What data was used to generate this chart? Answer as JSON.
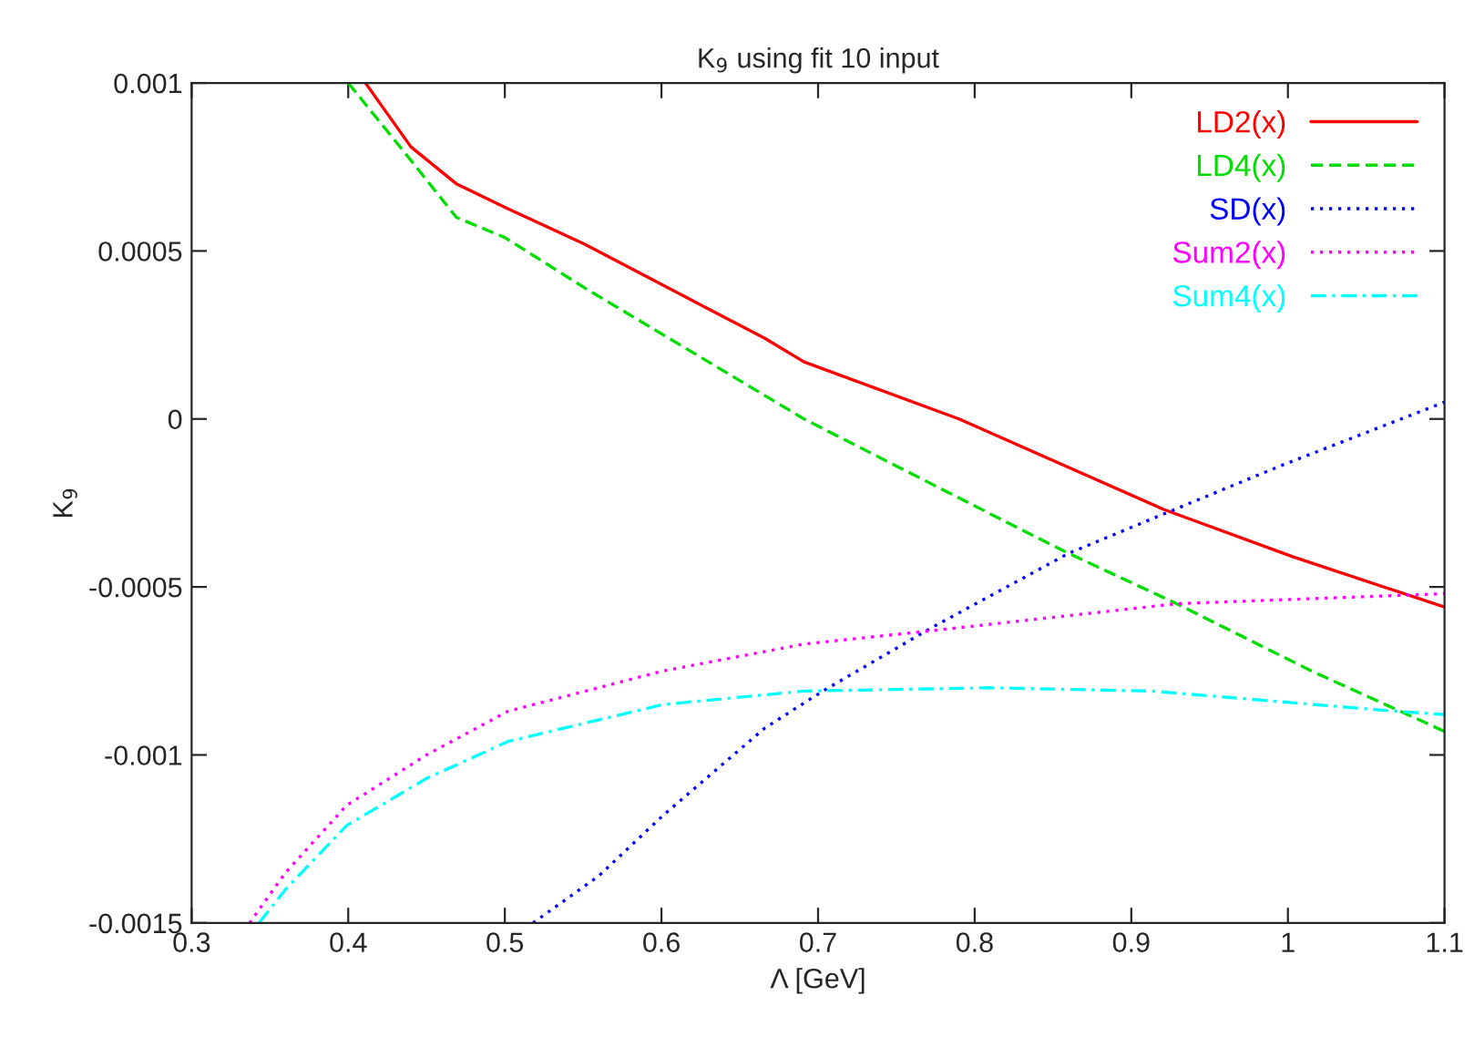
{
  "chart_data": {
    "type": "line",
    "title": "K$_{9}$ using fit 10 input",
    "xlabel": "Λ [GeV]",
    "ylabel": "K$_{9}$",
    "xlim": [
      0.3,
      1.1
    ],
    "xticks": [
      0.3,
      0.4,
      0.5,
      0.6,
      0.7,
      0.8,
      0.9,
      1,
      1.1
    ],
    "ylim": [
      -0.0015,
      0.001
    ],
    "yticks": [
      -0.0015,
      -0.001,
      -0.0005,
      0,
      0.0005,
      0.001
    ],
    "grid": false,
    "legend": "top right",
    "marker": "none",
    "series": [
      {
        "name": "LD2(x)",
        "color": "#ff0000",
        "line_style": "solid",
        "x": [
          0.411,
          0.44,
          0.469,
          0.5,
          0.551,
          0.666,
          0.691,
          0.79,
          0.921,
          1.003,
          1.1
        ],
        "values": [
          0.001,
          0.00081,
          0.0007,
          0.00063,
          0.00052,
          0.00024,
          0.00017,
          0.0,
          -0.00027,
          -0.00041,
          -0.00056
        ]
      },
      {
        "name": "LD4(x)",
        "color": "#00dd00",
        "line_style": "dashed",
        "x": [
          0.4,
          0.44,
          0.469,
          0.5,
          0.551,
          0.691,
          0.83,
          0.86,
          0.929,
          1.015,
          1.1
        ],
        "values": [
          0.001,
          0.00077,
          0.0006,
          0.00054,
          0.00039,
          0.0,
          -0.00033,
          -0.0004,
          -0.00055,
          -0.00075,
          -0.00093
        ]
      },
      {
        "name": "SD(x)",
        "color": "#0000ff",
        "line_style": "dotted",
        "x": [
          0.518,
          0.56,
          0.601,
          0.666,
          0.703,
          0.773,
          0.86,
          0.917,
          0.995,
          1.1
        ],
        "values": [
          -0.0015,
          -0.00136,
          -0.00118,
          -0.00092,
          -0.00081,
          -0.00062,
          -0.0004,
          -0.00029,
          -0.00014,
          5e-05
        ]
      },
      {
        "name": "Sum2(x)",
        "color": "#ff00ff",
        "line_style": "dotted",
        "x": [
          0.337,
          0.36,
          0.399,
          0.45,
          0.502,
          0.601,
          0.691,
          0.773,
          0.929,
          1.1
        ],
        "values": [
          -0.0015,
          -0.00135,
          -0.00115,
          -0.001,
          -0.00087,
          -0.00075,
          -0.00067,
          -0.00063,
          -0.00055,
          -0.00052
        ]
      },
      {
        "name": "Sum4(x)",
        "color": "#00ffff",
        "line_style": "dashdot",
        "x": [
          0.343,
          0.36,
          0.399,
          0.45,
          0.502,
          0.601,
          0.691,
          0.81,
          0.913,
          1.069,
          1.1
        ],
        "values": [
          -0.0015,
          -0.0014,
          -0.00121,
          -0.00107,
          -0.00096,
          -0.00085,
          -0.00081,
          -0.0008,
          -0.00081,
          -0.00087,
          -0.00088
        ]
      }
    ]
  }
}
